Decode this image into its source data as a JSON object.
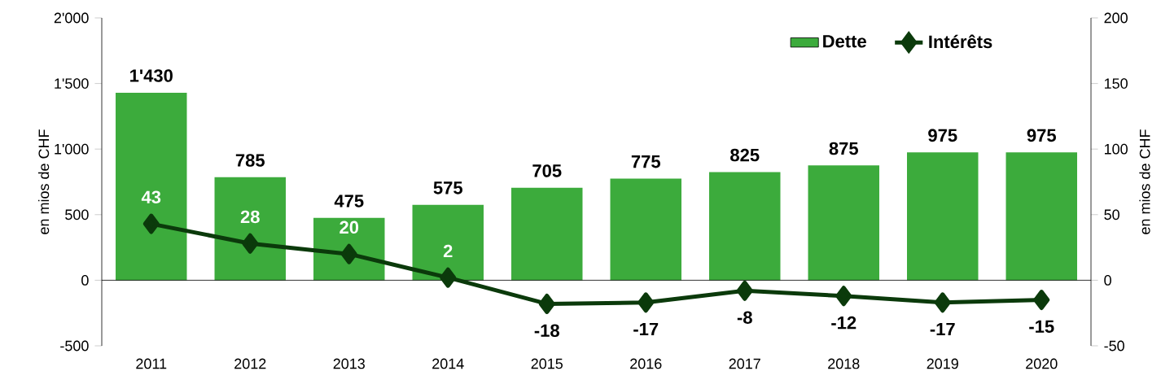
{
  "chart_data": {
    "type": "bar",
    "categories": [
      "2011",
      "2012",
      "2013",
      "2014",
      "2015",
      "2016",
      "2017",
      "2018",
      "2019",
      "2020"
    ],
    "series": [
      {
        "name": "Dette",
        "color": "#3cab3c",
        "values": [
          1430,
          785,
          475,
          575,
          705,
          775,
          825,
          875,
          975,
          975
        ],
        "value_labels": [
          "1'430",
          "785",
          "475",
          "575",
          "705",
          "775",
          "825",
          "875",
          "975",
          "975"
        ]
      },
      {
        "name": "Intérêts",
        "type": "line",
        "axis": "y2",
        "color": "#0b3a0b",
        "values": [
          43,
          28,
          20,
          2,
          -18,
          -17,
          -8,
          -12,
          -17,
          -15
        ],
        "value_labels": [
          "43",
          "28",
          "20",
          "2",
          "-18",
          "-17",
          "-8",
          "-12",
          "-17",
          "-15"
        ]
      }
    ],
    "marker": "diamond",
    "ylabel": "en mios de CHF",
    "y2label": "en mios de CHF",
    "ylim": [
      -500,
      2000
    ],
    "yticks": [
      -500,
      0,
      500,
      {
        "value": 1000,
        "label": "1'000"
      },
      {
        "value": 1500,
        "label": "1'500"
      },
      {
        "value": 2000,
        "label": "2'000"
      }
    ],
    "y2lim": [
      -50,
      200
    ],
    "y2ticks": [
      -50,
      0,
      50,
      100,
      150,
      200
    ],
    "legend": "top right"
  }
}
